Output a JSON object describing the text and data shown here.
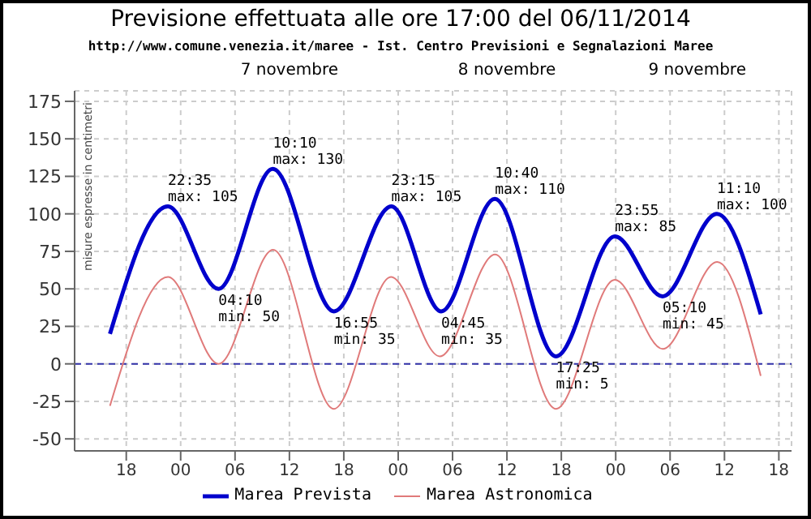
{
  "chart_data": {
    "type": "line",
    "title": "Previsione effettuata alle ore 17:00 del 06/11/2014",
    "subtitle": "http://www.comune.venezia.it/maree - Ist. Centro Previsioni e Segnalazioni Maree",
    "ylabel": "misure espresse in centimetri",
    "xlim": [
      "2014-11-06T12:18",
      "2014-11-09T19:24"
    ],
    "xticks": [
      {
        "value": "2014-11-06T18:00",
        "label": "18"
      },
      {
        "value": "2014-11-07T00:00",
        "label": "00"
      },
      {
        "value": "2014-11-07T06:00",
        "label": "06"
      },
      {
        "value": "2014-11-07T12:00",
        "label": "12"
      },
      {
        "value": "2014-11-07T18:00",
        "label": "18"
      },
      {
        "value": "2014-11-08T00:00",
        "label": "00"
      },
      {
        "value": "2014-11-08T06:00",
        "label": "06"
      },
      {
        "value": "2014-11-08T12:00",
        "label": "12"
      },
      {
        "value": "2014-11-08T18:00",
        "label": "18"
      },
      {
        "value": "2014-11-09T00:00",
        "label": "00"
      },
      {
        "value": "2014-11-09T06:00",
        "label": "06"
      },
      {
        "value": "2014-11-09T12:00",
        "label": "12"
      },
      {
        "value": "2014-11-09T18:00",
        "label": "18"
      }
    ],
    "x2lim": [
      "2014-11-06T12:18",
      "2014-11-09T19:24"
    ],
    "x2ticks": [
      {
        "value": "2014-11-07T12:00",
        "label": "7 novembre"
      },
      {
        "value": "2014-11-08T12:00",
        "label": "8 novembre"
      },
      {
        "value": "2014-11-09T09:00",
        "label": "9 novembre"
      }
    ],
    "ylim": [
      -58,
      182
    ],
    "yticks": [
      -50,
      -25,
      0,
      25,
      50,
      75,
      100,
      125,
      150,
      175
    ],
    "series": [
      {
        "name": "Marea Prevista",
        "color": "#0000cc",
        "x": [
          "2014-11-06T16:12",
          "2014-11-06T22:35",
          "2014-11-07T04:10",
          "2014-11-07T10:10",
          "2014-11-07T16:55",
          "2014-11-07T23:15",
          "2014-11-08T04:45",
          "2014-11-08T10:40",
          "2014-11-08T17:25",
          "2014-11-08T23:55",
          "2014-11-09T05:10",
          "2014-11-09T11:10",
          "2014-11-09T16:00"
        ],
        "values": [
          20,
          105,
          50,
          130,
          35,
          105,
          35,
          110,
          5,
          85,
          45,
          100,
          33
        ]
      },
      {
        "name": "Marea Astronomica",
        "color": "#e07a7a",
        "x": [
          "2014-11-06T16:12",
          "2014-11-06T22:36",
          "2014-11-07T04:12",
          "2014-11-07T10:12",
          "2014-11-07T16:54",
          "2014-11-07T23:12",
          "2014-11-08T04:36",
          "2014-11-08T10:42",
          "2014-11-08T17:24",
          "2014-11-08T23:54",
          "2014-11-09T05:12",
          "2014-11-09T11:12",
          "2014-11-09T16:00"
        ],
        "values": [
          -28,
          58,
          0,
          76,
          -30,
          58,
          5,
          73,
          -30,
          56,
          10,
          68,
          -8
        ]
      }
    ],
    "annotations": [
      {
        "text": "22:35\nmax: 105",
        "x": "2014-11-06T22:35",
        "y": 105
      },
      {
        "text": "04:10\nmin: 50",
        "x": "2014-11-07T04:10",
        "y": 50
      },
      {
        "text": "10:10\nmax: 130",
        "x": "2014-11-07T10:10",
        "y": 130
      },
      {
        "text": "16:55\nmin: 35",
        "x": "2014-11-07T16:55",
        "y": 35
      },
      {
        "text": "23:15\nmax: 105",
        "x": "2014-11-07T23:15",
        "y": 105
      },
      {
        "text": "04:45\nmin: 35",
        "x": "2014-11-08T04:45",
        "y": 35
      },
      {
        "text": "10:40\nmax: 110",
        "x": "2014-11-08T10:40",
        "y": 110
      },
      {
        "text": "17:25\nmin: 5",
        "x": "2014-11-08T17:25",
        "y": 5
      },
      {
        "text": "23:55\nmax: 85",
        "x": "2014-11-08T23:55",
        "y": 85
      },
      {
        "text": "05:10\nmin: 45",
        "x": "2014-11-09T05:10",
        "y": 45
      },
      {
        "text": "11:10\nmax: 100",
        "x": "2014-11-09T11:10",
        "y": 100
      }
    ],
    "ref_lines": [
      {
        "axis": "y",
        "value": 0,
        "color": "#3333aa",
        "line_style": "dashed"
      }
    ],
    "grid": true,
    "legend": "bottom",
    "marker": "none",
    "line_style": "solid"
  }
}
